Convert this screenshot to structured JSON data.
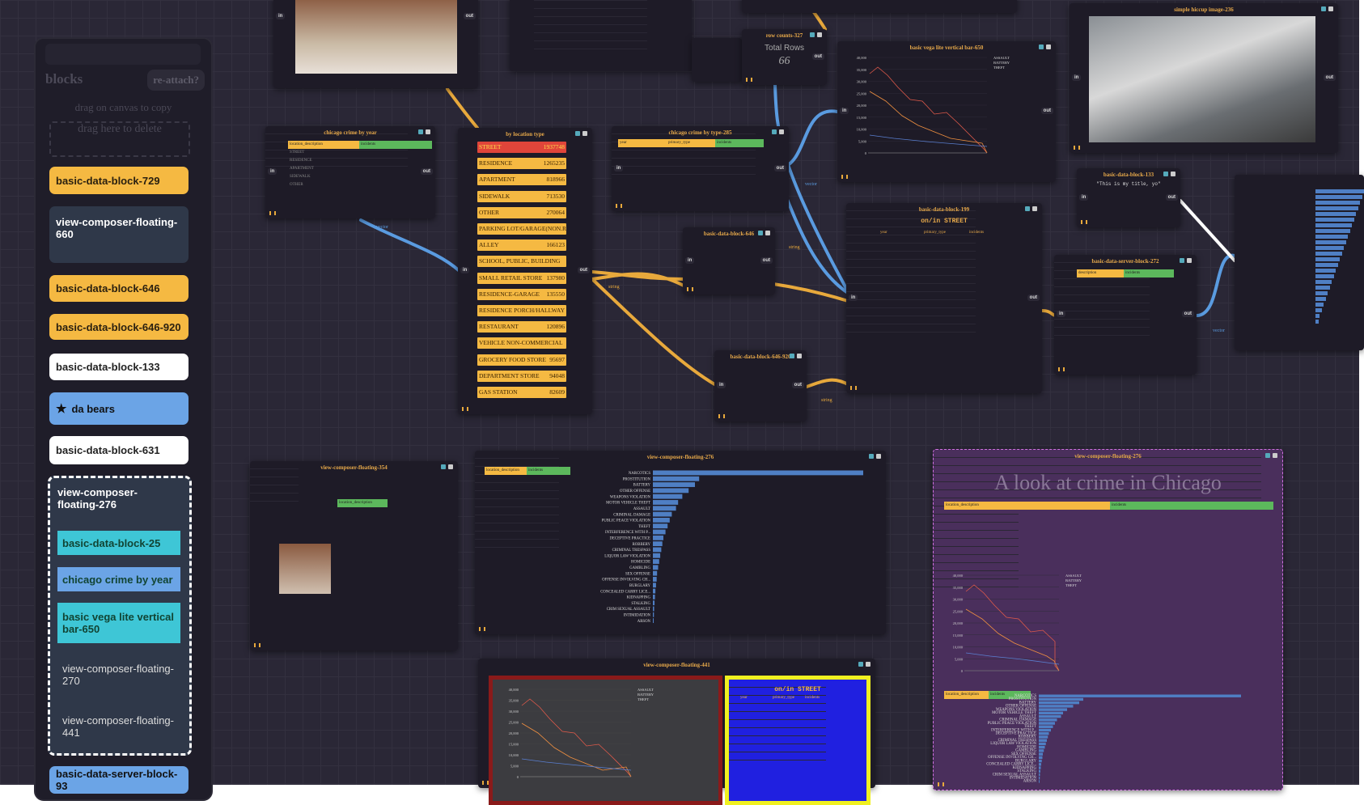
{
  "sidebar": {
    "title": "blocks",
    "reattach": "re-attach?",
    "hint": "drag on canvas to copy",
    "delete_zone": "drag here to delete",
    "items": [
      "basic-data-block-729",
      "view-composer-floating-660",
      "basic-data-block-646",
      "basic-data-block-646-920",
      "basic-data-block-133",
      "da bears",
      "basic-data-block-631"
    ],
    "group": {
      "label": "view-composer-floating-276",
      "children": [
        "basic-data-block-25",
        "chicago crime by year",
        "basic vega lite vertical bar-650",
        "view-composer-floating-270",
        "view-composer-floating-441"
      ]
    },
    "last": "basic-data-server-block-93"
  },
  "ports": {
    "in": "in",
    "out": "out"
  },
  "edge_labels": [
    "vector",
    "string",
    "string",
    "string",
    "vector",
    "vector"
  ],
  "nodes": {
    "crime_by_year": {
      "title": "chicago crime by year",
      "headers": [
        "location_description",
        "incidents"
      ],
      "rows": [
        "STREET",
        "RESIDENCE",
        "APARTMENT",
        "SIDEWALK",
        "OTHER"
      ]
    },
    "location": {
      "title": "by location type",
      "rows": [
        [
          "STREET",
          1937748
        ],
        [
          "RESIDENCE",
          1265235
        ],
        [
          "APARTMENT",
          818966
        ],
        [
          "SIDEWALK",
          713530
        ],
        [
          "OTHER",
          270064
        ],
        [
          "PARKING LOT/GARAGE(NON.R"
        ],
        [
          "ALLEY",
          166123
        ],
        [
          "SCHOOL, PUBLIC, BUILDING"
        ],
        [
          "SMALL RETAIL STORE",
          137980
        ],
        [
          "RESIDENCE-GARAGE",
          135550
        ],
        [
          "RESIDENCE PORCH/HALLWAY"
        ],
        [
          "RESTAURANT",
          120896
        ],
        [
          "VEHICLE NON-COMMERCIAL"
        ],
        [
          "GROCERY FOOD STORE",
          95697
        ],
        [
          "DEPARTMENT STORE",
          94048
        ],
        [
          "GAS STATION",
          82609
        ]
      ]
    },
    "by_type": {
      "title": "chicago crime by type-285",
      "headers": [
        "year",
        "primary_type",
        "incidents"
      ]
    },
    "row_counts": {
      "title": "row counts-327",
      "label": "Total Rows",
      "value": 66
    },
    "vega": {
      "title": "basic vega lite vertical bar-650",
      "legend": [
        "ASSAULT",
        "BATTERY",
        "THEFT"
      ],
      "yticks": [
        "40,000",
        "35,000",
        "30,000",
        "25,000",
        "20,000",
        "15,000",
        "10,000",
        "5,000",
        "0"
      ]
    },
    "image236": {
      "title": "simple hiccup image-236"
    },
    "block199": {
      "title": "basic-data-block-199",
      "heading": "on/in STREET",
      "headers": [
        "year",
        "primary_type",
        "incidents"
      ]
    },
    "block133": {
      "title": "basic-data-block-133",
      "text": "\"This is my title, yo\""
    },
    "server272": {
      "title": "basic-data-server-block-272",
      "headers": [
        "description",
        "incidents"
      ]
    },
    "block646": {
      "title": "basic-data-block-646"
    },
    "block646_920": {
      "title": "basic-data-block-646-920"
    },
    "vc354": {
      "title": "view-composer-floating-354"
    },
    "vc276": {
      "title": "view-composer-floating-276",
      "chart": {
        "type": "bar",
        "categories": [
          "NARCOTICS",
          "PROSTITUTION",
          "BATTERY",
          "OTHER OFFENSE",
          "WEAPONS VIOLATION",
          "MOTOR VEHICLE THEFT",
          "ASSAULT",
          "CRIMINAL DAMAGE",
          "PUBLIC PEACE VIOLATION",
          "THEFT",
          "INTERFERENCE WITH P...",
          "DECEPTIVE PRACTICE",
          "ROBBERY",
          "CRIMINAL TRESPASS",
          "LIQUOR LAW VIOLATION",
          "HOMICIDE",
          "GAMBLING",
          "SEX OFFENSE",
          "OFFENSE INVOLVING CH...",
          "BURGLARY",
          "CONCEALED CARRY LICE...",
          "KIDNAPPING",
          "STALKING",
          "CRIM SEXUAL ASSAULT",
          "INTIMIDATION",
          "ARSON"
        ],
        "values": [
          100,
          22,
          20,
          17,
          14,
          12,
          11,
          9,
          8,
          7,
          6,
          5,
          4.5,
          4,
          3.5,
          3,
          2.5,
          2,
          1.8,
          1.5,
          1.2,
          1,
          0.8,
          0.6,
          0.5,
          0.4
        ],
        "color": "#4f7fc4",
        "xlim": [
          0,
          100
        ]
      }
    },
    "vc276b": {
      "title": "view-composer-floating-276",
      "heading": "A look at crime in Chicago"
    },
    "vc441": {
      "title": "view-composer-floating-441"
    }
  }
}
